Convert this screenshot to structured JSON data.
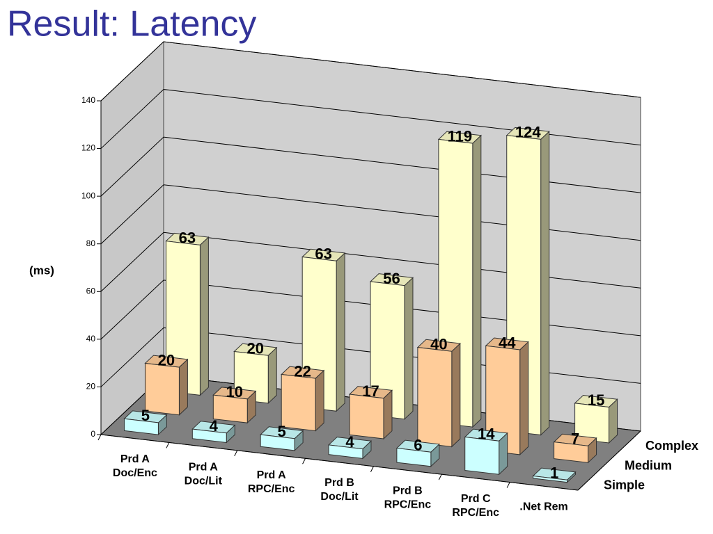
{
  "chart_data": {
    "type": "bar3d",
    "title": "Result: Latency",
    "y_label": "(ms)",
    "categories": [
      [
        "Prd A",
        "Doc/Enc"
      ],
      [
        "Prd A",
        "Doc/Lit"
      ],
      [
        "Prd A",
        "RPC/Enc"
      ],
      [
        "Prd B",
        "Doc/Lit"
      ],
      [
        "Prd B",
        "RPC/Enc"
      ],
      [
        "Prd C",
        "RPC/Enc"
      ],
      [
        ".Net Rem"
      ]
    ],
    "series": [
      {
        "name": "Simple",
        "color": "#ccffff",
        "values": [
          5,
          4,
          5,
          4,
          6,
          14,
          1
        ]
      },
      {
        "name": "Medium",
        "color": "#ffcc99",
        "values": [
          20,
          10,
          22,
          17,
          40,
          44,
          7
        ]
      },
      {
        "name": "Complex",
        "color": "#ffffcc",
        "values": [
          63,
          20,
          63,
          56,
          119,
          124,
          15
        ]
      }
    ],
    "ylim": [
      0,
      140
    ],
    "yticks": [
      0,
      20,
      40,
      60,
      80,
      100,
      120,
      140
    ],
    "grid": true
  }
}
